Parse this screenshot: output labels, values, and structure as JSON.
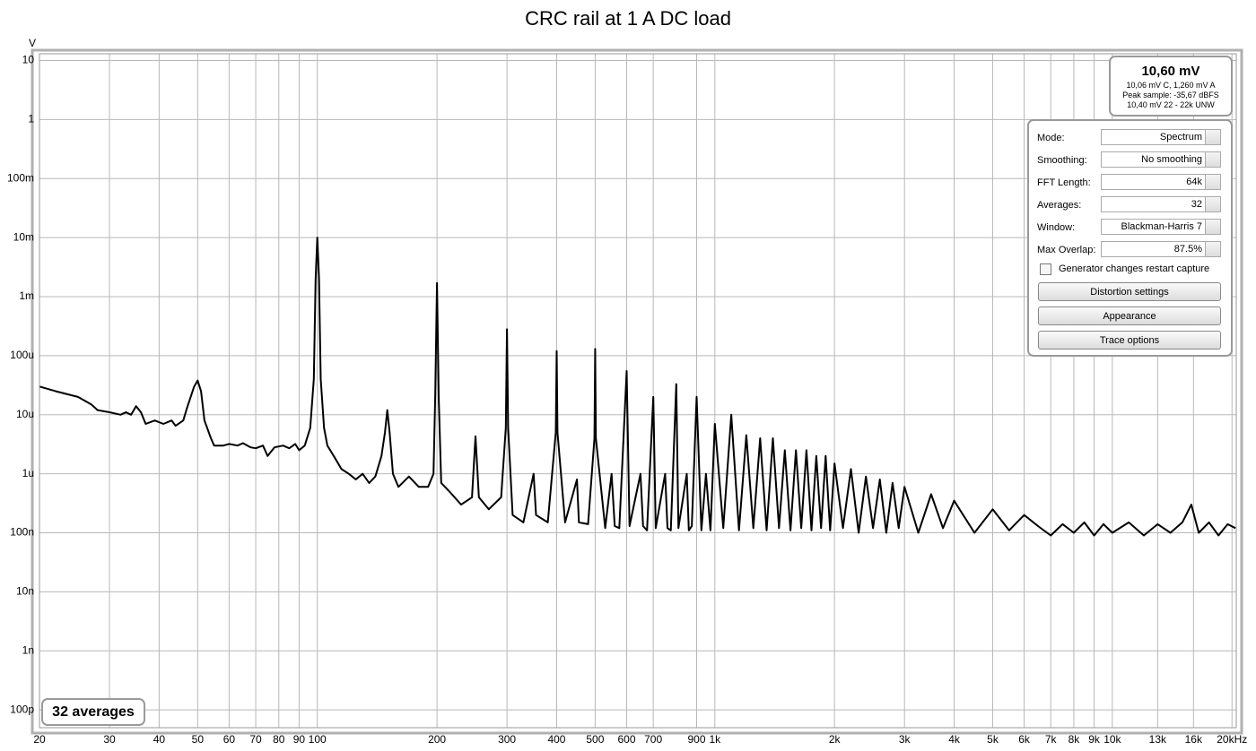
{
  "chart_data": {
    "type": "line",
    "title": "CRC rail at 1 A DC load",
    "y_unit": "V",
    "log_x": true,
    "log_y": true,
    "grid": true,
    "xlim": [
      20,
      20500
    ],
    "ylim": [
      5e-11,
      13
    ],
    "xticks": [
      20,
      30,
      40,
      50,
      60,
      70,
      80,
      90,
      100,
      200,
      300,
      400,
      500,
      600,
      700,
      900,
      {
        "value": 1000,
        "label": "1k"
      },
      {
        "value": 2000,
        "label": "2k"
      },
      {
        "value": 3000,
        "label": "3k"
      },
      {
        "value": 4000,
        "label": "4k"
      },
      {
        "value": 5000,
        "label": "5k"
      },
      {
        "value": 6000,
        "label": "6k"
      },
      {
        "value": 7000,
        "label": "7k"
      },
      {
        "value": 8000,
        "label": "8k"
      },
      {
        "value": 9000,
        "label": "9k"
      },
      {
        "value": 10000,
        "label": "10k"
      },
      {
        "value": 13000,
        "label": "13k"
      },
      {
        "value": 16000,
        "label": "16k"
      },
      {
        "value": 20000,
        "label": "20kHz"
      }
    ],
    "yticks": [
      10,
      1,
      {
        "value": 0.1,
        "label": "100m"
      },
      {
        "value": 0.01,
        "label": "10m"
      },
      {
        "value": 0.001,
        "label": "1m"
      },
      {
        "value": 0.0001,
        "label": "100u"
      },
      {
        "value": 1e-05,
        "label": "10u"
      },
      {
        "value": 1e-06,
        "label": "1u"
      },
      {
        "value": 1e-07,
        "label": "100n"
      },
      {
        "value": 1e-08,
        "label": "10n"
      },
      {
        "value": 1e-09,
        "label": "1n"
      },
      {
        "value": 1e-10,
        "label": "100p"
      }
    ],
    "series": [
      {
        "color": "#000000",
        "x": [
          20,
          22,
          25,
          27,
          28,
          30,
          32,
          33,
          34,
          35,
          36,
          37,
          39,
          41,
          43,
          44,
          46,
          47,
          49,
          50,
          51,
          52,
          54,
          55,
          58,
          60,
          63,
          65,
          68,
          70,
          73,
          75,
          78,
          82,
          85,
          88,
          90,
          93,
          96,
          98,
          99,
          100,
          101,
          102,
          104,
          106,
          110,
          115,
          120,
          125,
          130,
          135,
          140,
          145,
          148,
          150,
          152,
          155,
          160,
          170,
          180,
          190,
          196,
          198,
          200,
          202,
          205,
          215,
          230,
          245,
          250,
          255,
          270,
          290,
          298,
          300,
          302,
          310,
          330,
          350,
          355,
          380,
          398,
          400,
          402,
          420,
          450,
          455,
          480,
          498,
          500,
          502,
          530,
          550,
          560,
          575,
          600,
          610,
          650,
          660,
          675,
          700,
          710,
          750,
          760,
          775,
          800,
          810,
          850,
          860,
          875,
          900,
          925,
          950,
          975,
          1000,
          1050,
          1100,
          1150,
          1200,
          1250,
          1300,
          1350,
          1400,
          1450,
          1500,
          1550,
          1600,
          1650,
          1700,
          1750,
          1800,
          1850,
          1900,
          1950,
          2000,
          2100,
          2200,
          2300,
          2400,
          2500,
          2600,
          2700,
          2800,
          2900,
          3000,
          3250,
          3500,
          3750,
          4000,
          4500,
          5000,
          5500,
          6000,
          6500,
          7000,
          7500,
          8000,
          8500,
          9000,
          9500,
          10000,
          11000,
          12000,
          13000,
          14000,
          15000,
          15800,
          16500,
          17500,
          18500,
          19500,
          20400
        ],
        "values": [
          3e-05,
          2.5e-05,
          2e-05,
          1.5e-05,
          1.2e-05,
          1.1e-05,
          1e-05,
          1.1e-05,
          1e-05,
          1.4e-05,
          1.1e-05,
          7e-06,
          8e-06,
          7e-06,
          8e-06,
          6.5e-06,
          8e-06,
          1.3e-05,
          3e-05,
          3.8e-05,
          2.5e-05,
          8e-06,
          4e-06,
          3e-06,
          3e-06,
          3.2e-06,
          3e-06,
          3.3e-06,
          2.8e-06,
          2.7e-06,
          3e-06,
          2e-06,
          2.8e-06,
          3e-06,
          2.7e-06,
          3.2e-06,
          2.5e-06,
          3e-06,
          6e-06,
          4e-05,
          0.002,
          0.01,
          0.002,
          4e-05,
          6e-06,
          3e-06,
          2e-06,
          1.2e-06,
          1e-06,
          8e-07,
          1e-06,
          7e-07,
          9e-07,
          2e-06,
          5e-06,
          1.2e-05,
          5e-06,
          1e-06,
          6e-07,
          9e-07,
          6e-07,
          6e-07,
          1e-06,
          2e-05,
          0.0017,
          2e-05,
          7e-07,
          5e-07,
          3e-07,
          4e-07,
          4.3e-06,
          4e-07,
          2.5e-07,
          4e-07,
          6e-06,
          0.00028,
          6e-06,
          2e-07,
          1.5e-07,
          1e-06,
          2e-07,
          1.5e-07,
          5e-06,
          0.00012,
          5e-06,
          1.5e-07,
          8e-07,
          1.5e-07,
          1.4e-07,
          4e-06,
          0.00013,
          4e-06,
          1.2e-07,
          1e-06,
          1.3e-07,
          1.2e-07,
          5.5e-05,
          1.3e-07,
          1e-06,
          1.3e-07,
          1.1e-07,
          2e-05,
          1.2e-07,
          1e-06,
          1.2e-07,
          1.1e-07,
          3.3e-05,
          1.2e-07,
          1e-06,
          1.1e-07,
          1.3e-07,
          2e-05,
          1.1e-07,
          1e-06,
          1.1e-07,
          7e-06,
          1.2e-07,
          1e-05,
          1.1e-07,
          4.5e-06,
          1.2e-07,
          4e-06,
          1.1e-07,
          4e-06,
          1.2e-07,
          2.5e-06,
          1.1e-07,
          2.5e-06,
          1.2e-07,
          2.5e-06,
          1.1e-07,
          2e-06,
          1.2e-07,
          2e-06,
          1.1e-07,
          1.5e-06,
          1.2e-07,
          1.2e-06,
          1e-07,
          9e-07,
          1.2e-07,
          8e-07,
          1e-07,
          7e-07,
          1.2e-07,
          6e-07,
          1e-07,
          4.5e-07,
          1.2e-07,
          3.5e-07,
          1e-07,
          2.5e-07,
          1.1e-07,
          2e-07,
          1.3e-07,
          9e-08,
          1.4e-07,
          1e-07,
          1.5e-07,
          9e-08,
          1.4e-07,
          1e-07,
          1.5e-07,
          9e-08,
          1.4e-07,
          1e-07,
          1.5e-07,
          3e-07,
          1e-07,
          1.5e-07,
          9e-08,
          1.4e-07,
          1.2e-07
        ]
      }
    ]
  },
  "readout": {
    "main": "10,60 mV",
    "lines": [
      "10,06 mV C, 1,260 mV A",
      "Peak sample: -35,67 dBFS",
      "10,40 mV 22 - 22k UNW"
    ]
  },
  "settings": {
    "rows": [
      [
        "Mode:",
        "Spectrum"
      ],
      [
        "Smoothing:",
        "No  smoothing"
      ],
      [
        "FFT Length:",
        "64k"
      ],
      [
        "Averages:",
        "32"
      ],
      [
        "Window:",
        "Blackman-Harris 7"
      ],
      [
        "Max Overlap:",
        "87.5%"
      ]
    ],
    "checkbox": "Generator changes restart capture",
    "buttons": [
      "Distortion settings",
      "Appearance",
      "Trace options"
    ]
  },
  "badge": "32 averages"
}
